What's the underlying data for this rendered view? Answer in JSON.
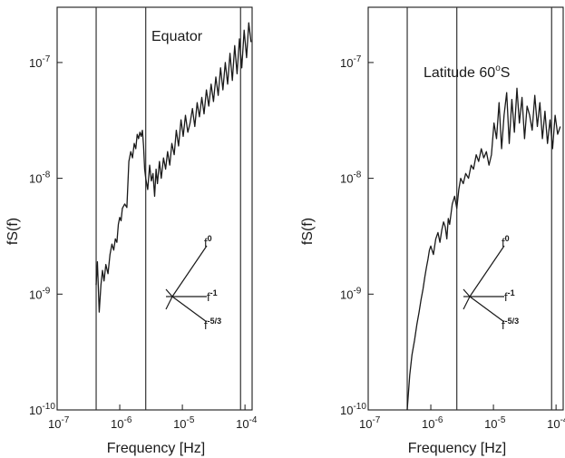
{
  "chart_data": [
    {
      "type": "line",
      "title": "Equator",
      "xlabel": "Frequency [Hz]",
      "ylabel": "fS(f)",
      "x_scale": "log",
      "y_scale": "log",
      "xlim": [
        1e-07,
        0.00013
      ],
      "ylim": [
        1e-10,
        3e-07
      ],
      "x_ticks": [
        {
          "value": 1e-07,
          "base": "10",
          "exp": "-7"
        },
        {
          "value": 1e-06,
          "base": "10",
          "exp": "-6"
        },
        {
          "value": 1e-05,
          "base": "10",
          "exp": "-5"
        },
        {
          "value": 0.0001,
          "base": "10",
          "exp": "-4"
        }
      ],
      "y_ticks": [
        {
          "value": 1e-10,
          "base": "10",
          "exp": "-10"
        },
        {
          "value": 1e-09,
          "base": "10",
          "exp": "-9"
        },
        {
          "value": 1e-08,
          "base": "10",
          "exp": "-8"
        },
        {
          "value": 1e-07,
          "base": "10",
          "exp": "-7"
        }
      ],
      "vertical_lines": [
        4.2e-07,
        2.6e-06,
        8.5e-05
      ],
      "series": [
        {
          "x": [
            4.2e-07,
            4.4e-07,
            4.7e-07,
            5e-07,
            5.3e-07,
            5.6e-07,
            6e-07,
            6.5e-07,
            7e-07,
            7.5e-07,
            8e-07,
            8.5e-07,
            9e-07,
            9.5e-07,
            1e-06,
            1.05e-06,
            1.1e-06,
            1.2e-06,
            1.3e-06,
            1.4e-06,
            1.5e-06,
            1.6e-06,
            1.7e-06,
            1.8e-06,
            1.9e-06,
            2e-06,
            2.1e-06,
            2.2e-06,
            2.3e-06,
            2.4e-06,
            2.5e-06,
            2.6e-06,
            2.8e-06,
            3e-06,
            3.2e-06,
            3.4e-06,
            3.6e-06,
            3.8e-06,
            4e-06,
            4.3e-06,
            4.6e-06,
            5e-06,
            5.4e-06,
            5.8e-06,
            6.3e-06,
            6.8e-06,
            7.4e-06,
            8e-06,
            8.7e-06,
            9.5e-06,
            1.03e-05,
            1.12e-05,
            1.22e-05,
            1.33e-05,
            1.45e-05,
            1.58e-05,
            1.72e-05,
            1.87e-05,
            2.04e-05,
            2.22e-05,
            2.42e-05,
            2.64e-05,
            2.88e-05,
            3.14e-05,
            3.42e-05,
            3.73e-05,
            4.07e-05,
            4.44e-05,
            4.84e-05,
            5.28e-05,
            5.76e-05,
            6.28e-05,
            6.85e-05,
            7.47e-05,
            8.15e-05,
            8.89e-05,
            9.7e-05,
            0.000106,
            0.000115,
            0.000125
          ],
          "y": [
            1.2e-09,
            1.9e-09,
            7e-10,
            1.2e-09,
            1.6e-09,
            1.3e-09,
            1.8e-09,
            1.5e-09,
            2.2e-09,
            2.7e-09,
            2.4e-09,
            3e-09,
            2.8e-09,
            4e-09,
            4.6e-09,
            4.3e-09,
            5.5e-09,
            6e-09,
            5.6e-09,
            1.4e-08,
            1.7e-08,
            1.5e-08,
            2e-08,
            1.8e-08,
            2.4e-08,
            2.2e-08,
            2.5e-08,
            2.3e-08,
            2.6e-08,
            1.9e-08,
            1.2e-08,
            1e-08,
            8e-09,
            1.3e-08,
            9.5e-09,
            1.1e-08,
            7e-09,
            1.2e-08,
            9e-09,
            1.4e-08,
            1e-08,
            1.5e-08,
            1.2e-08,
            1.7e-08,
            1.3e-08,
            2e-08,
            1.6e-08,
            2.6e-08,
            1.9e-08,
            3.2e-08,
            2.3e-08,
            3.5e-08,
            2.5e-08,
            3e-08,
            4e-08,
            2.8e-08,
            4.5e-08,
            3.4e-08,
            5e-08,
            3.6e-08,
            5.8e-08,
            4.2e-08,
            6.5e-08,
            4.6e-08,
            7.5e-08,
            5.2e-08,
            9e-08,
            5.8e-08,
            1e-07,
            6.5e-08,
            1.2e-07,
            7e-08,
            1.4e-07,
            8e-08,
            1.6e-07,
            9e-08,
            1.9e-07,
            1.1e-07,
            2.2e-07,
            1.5e-07
          ]
        }
      ],
      "slope_labels": [
        "f",
        "f",
        "f"
      ],
      "slope_exponents": [
        "0",
        "-1",
        "-5/3"
      ]
    },
    {
      "type": "line",
      "title": "Latitude 60",
      "title_sup": "o",
      "title_suffix": "S",
      "xlabel": "Frequency [Hz]",
      "ylabel": "fS(f)",
      "x_scale": "log",
      "y_scale": "log",
      "xlim": [
        1e-07,
        0.00013
      ],
      "ylim": [
        1e-10,
        3e-07
      ],
      "x_ticks": [
        {
          "value": 1e-07,
          "base": "10",
          "exp": "-7"
        },
        {
          "value": 1e-06,
          "base": "10",
          "exp": "-6"
        },
        {
          "value": 1e-05,
          "base": "10",
          "exp": "-5"
        },
        {
          "value": 0.0001,
          "base": "10",
          "exp": "-4"
        }
      ],
      "y_ticks": [
        {
          "value": 1e-10,
          "base": "10",
          "exp": "-10"
        },
        {
          "value": 1e-09,
          "base": "10",
          "exp": "-9"
        },
        {
          "value": 1e-08,
          "base": "10",
          "exp": "-8"
        },
        {
          "value": 1e-07,
          "base": "10",
          "exp": "-7"
        }
      ],
      "vertical_lines": [
        4.2e-07,
        2.6e-06,
        8.5e-05
      ],
      "series": [
        {
          "x": [
            4.2e-07,
            4.6e-07,
            5e-07,
            5.5e-07,
            6e-07,
            6.5e-07,
            7e-07,
            7.5e-07,
            8e-07,
            8.5e-07,
            9e-07,
            9.5e-07,
            1e-06,
            1.1e-06,
            1.2e-06,
            1.3e-06,
            1.4e-06,
            1.5e-06,
            1.6e-06,
            1.7e-06,
            1.8e-06,
            1.9e-06,
            2e-06,
            2.2e-06,
            2.4e-06,
            2.6e-06,
            2.8e-06,
            3e-06,
            3.3e-06,
            3.6e-06,
            4e-06,
            4.4e-06,
            4.8e-06,
            5.3e-06,
            5.8e-06,
            6.4e-06,
            7e-06,
            7.7e-06,
            8.5e-06,
            9.3e-06,
            1.02e-05,
            1.12e-05,
            1.23e-05,
            1.35e-05,
            1.48e-05,
            1.63e-05,
            1.79e-05,
            1.97e-05,
            2.16e-05,
            2.37e-05,
            2.6e-05,
            2.86e-05,
            3.14e-05,
            3.45e-05,
            3.79e-05,
            4.16e-05,
            4.57e-05,
            5.02e-05,
            5.51e-05,
            6.05e-05,
            6.65e-05,
            7.3e-05,
            8.02e-05,
            8.8e-05,
            9.67e-05,
            0.000106,
            0.000117
          ],
          "y": [
            1e-10,
            2e-10,
            3e-10,
            4e-10,
            5.5e-10,
            7e-10,
            9e-10,
            1.1e-09,
            1.4e-09,
            1.7e-09,
            2e-09,
            2.4e-09,
            2.6e-09,
            2.2e-09,
            3e-09,
            3.4e-09,
            2.8e-09,
            3.6e-09,
            4.2e-09,
            3.8e-09,
            3e-09,
            4.5e-09,
            4e-09,
            6e-09,
            7e-09,
            5.5e-09,
            8e-09,
            1e-08,
            9e-09,
            1.1e-08,
            1e-08,
            1.3e-08,
            1.2e-08,
            1.6e-08,
            1.4e-08,
            1.8e-08,
            1.5e-08,
            1.7e-08,
            1.3e-08,
            1.6e-08,
            3e-08,
            2.2e-08,
            4.5e-08,
            1.8e-08,
            3.5e-08,
            5.5e-08,
            2e-08,
            4.8e-08,
            2.5e-08,
            6e-08,
            3e-08,
            5e-08,
            2.2e-08,
            4.2e-08,
            3.5e-08,
            2.6e-08,
            5.2e-08,
            2.8e-08,
            4.5e-08,
            2.2e-08,
            3.8e-08,
            2e-08,
            3.2e-08,
            1.8e-08,
            3.5e-08,
            2.4e-08,
            2.8e-08
          ]
        }
      ],
      "slope_labels": [
        "f",
        "f",
        "f"
      ],
      "slope_exponents": [
        "0",
        "-1",
        "-5/3"
      ]
    }
  ]
}
